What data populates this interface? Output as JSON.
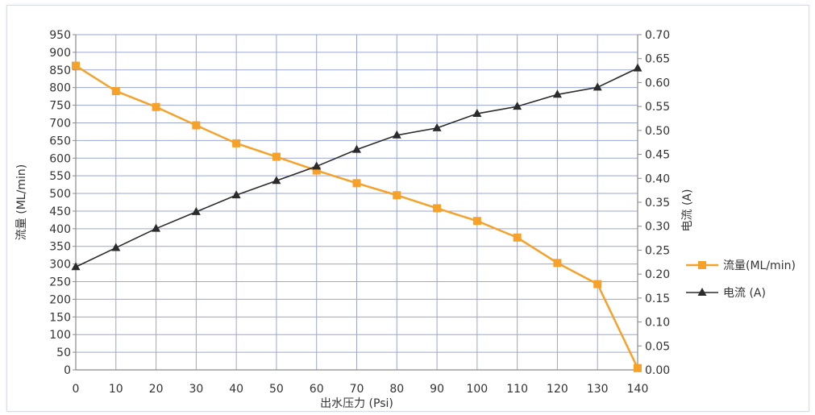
{
  "chart_data": {
    "type": "line",
    "title": "",
    "xlabel": "出水压力 (Psi)",
    "x": [
      0,
      10,
      20,
      30,
      40,
      50,
      60,
      70,
      80,
      90,
      100,
      110,
      120,
      130,
      140
    ],
    "xlim": [
      0,
      140
    ],
    "ylabel_left": "流量 (ML/min)",
    "ylim_left": [
      0,
      950
    ],
    "ylabel_right": "电流 (A)",
    "ylim_right": [
      0,
      0.7
    ],
    "grid": true,
    "legend_position": "right",
    "series": [
      {
        "name": "流量(ML/min)",
        "axis": "left",
        "marker": "square",
        "color": "#f5a12a",
        "values": [
          862,
          790,
          745,
          693,
          642,
          604,
          565,
          529,
          495,
          458,
          422,
          375,
          303,
          243,
          5
        ]
      },
      {
        "name": "电流 (A)",
        "axis": "right",
        "marker": "triangle",
        "color": "#2b2b2b",
        "values": [
          0.215,
          0.255,
          0.295,
          0.33,
          0.365,
          0.395,
          0.425,
          0.46,
          0.49,
          0.505,
          0.535,
          0.55,
          0.575,
          0.59,
          0.63
        ]
      }
    ],
    "left_ticks": [
      0,
      50,
      100,
      150,
      200,
      250,
      300,
      350,
      400,
      450,
      500,
      550,
      600,
      650,
      700,
      750,
      800,
      850,
      900,
      950
    ],
    "right_ticks": [
      "0.00",
      "0.05",
      "0.10",
      "0.15",
      "0.20",
      "0.25",
      "0.30",
      "0.35",
      "0.40",
      "0.45",
      "0.50",
      "0.55",
      "0.60",
      "0.65",
      "0.70"
    ],
    "colors": {
      "grid": "#9aa6d4",
      "axis": "#8a8a8a"
    }
  }
}
